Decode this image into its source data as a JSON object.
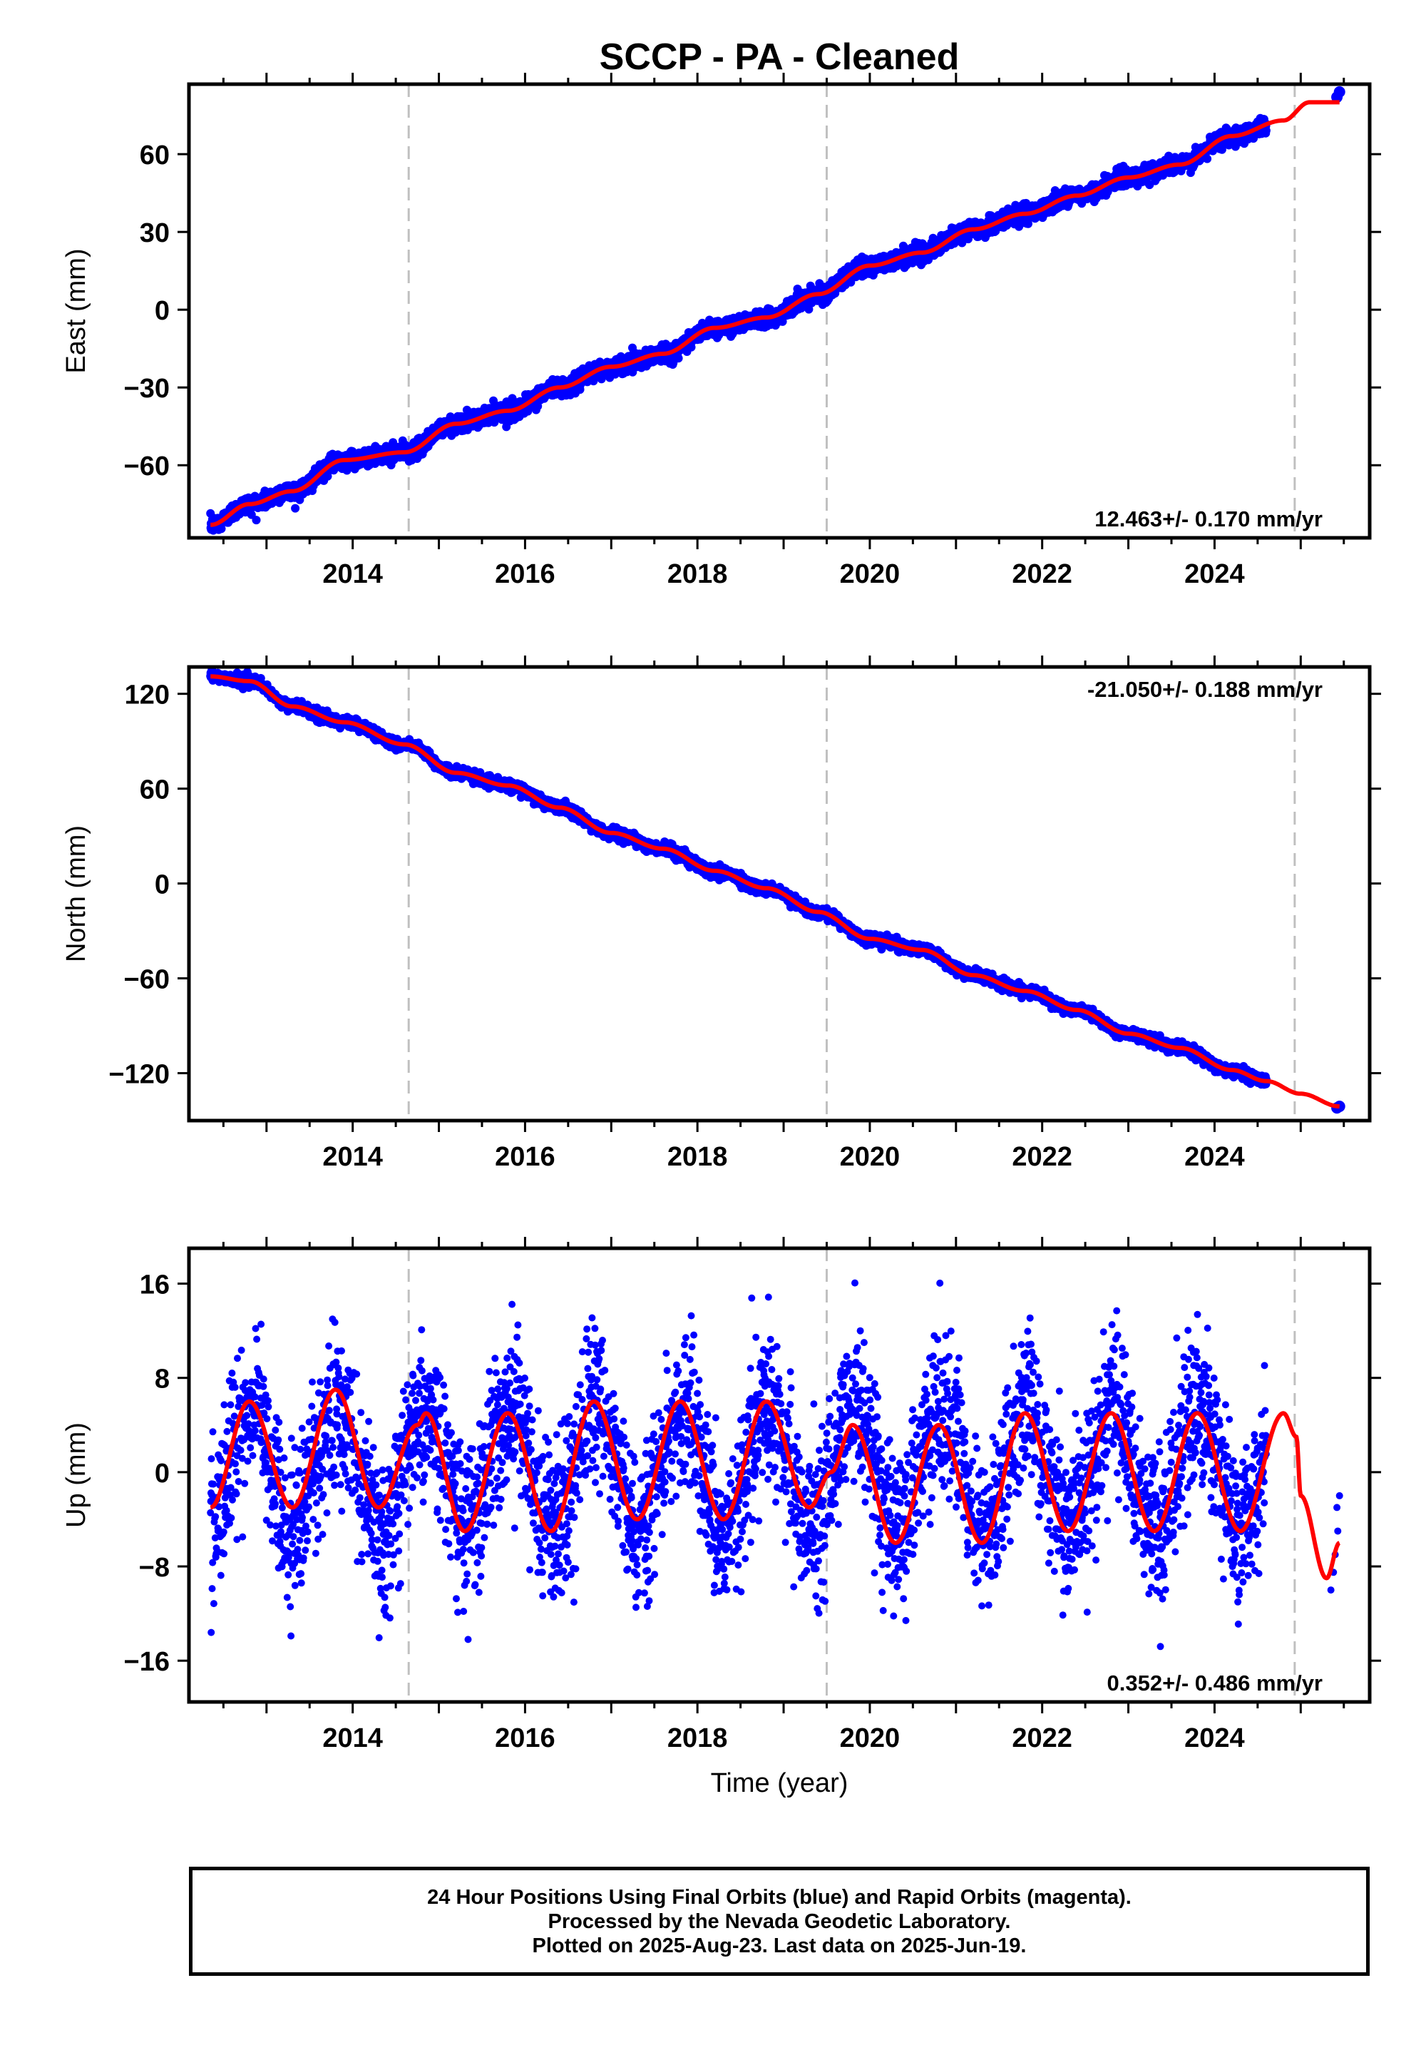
{
  "figure": {
    "title": "SCCP  - PA - Cleaned",
    "xlabel": "Time (year)",
    "footer_lines": [
      "24 Hour Positions Using Final Orbits (blue) and Rapid Orbits (magenta).",
      "Processed by the Nevada Geodetic Laboratory.",
      "Plotted on 2025-Aug-23. Last data on 2025-Jun-19."
    ]
  },
  "colors": {
    "data_points": "#0000ff",
    "model_fit": "#ff0000",
    "event_lines": "#c0c0c0",
    "frame": "#000000"
  },
  "chart_data": [
    {
      "type": "scatter",
      "component": "East",
      "ylabel": "East (mm)",
      "xlim": [
        2012.1,
        2025.8
      ],
      "ylim": [
        -88,
        87
      ],
      "yticks": [
        -60,
        -30,
        0,
        30,
        60
      ],
      "xticks": [
        2014,
        2016,
        2018,
        2020,
        2022,
        2024
      ],
      "event_lines_x": [
        2014.65,
        2019.5,
        2024.93
      ],
      "rate_label": "12.463+/- 0.170 mm/yr",
      "rate_label_position": "bottom-right",
      "data_range": [
        2012.35,
        2024.6
      ],
      "extra_points": [
        [
          2025.42,
          82
        ],
        [
          2025.45,
          84
        ]
      ],
      "fit_points": [
        [
          2012.35,
          -83
        ],
        [
          2012.8,
          -75
        ],
        [
          2013.3,
          -70
        ],
        [
          2013.9,
          -58
        ],
        [
          2014.6,
          -55
        ],
        [
          2015.2,
          -44
        ],
        [
          2015.8,
          -39
        ],
        [
          2016.4,
          -30
        ],
        [
          2017.0,
          -22
        ],
        [
          2017.6,
          -17
        ],
        [
          2018.2,
          -7
        ],
        [
          2018.8,
          -3
        ],
        [
          2019.4,
          6
        ],
        [
          2020.0,
          17
        ],
        [
          2020.6,
          22
        ],
        [
          2021.2,
          31
        ],
        [
          2021.8,
          37
        ],
        [
          2022.4,
          44
        ],
        [
          2023.0,
          51
        ],
        [
          2023.6,
          56
        ],
        [
          2024.2,
          67
        ],
        [
          2024.8,
          73
        ],
        [
          2025.1,
          80
        ],
        [
          2025.45,
          80
        ]
      ]
    },
    {
      "type": "scatter",
      "component": "North",
      "ylabel": "North (mm)",
      "xlim": [
        2012.1,
        2025.8
      ],
      "ylim": [
        -150,
        137
      ],
      "yticks": [
        -120,
        -60,
        0,
        60,
        120
      ],
      "xticks": [
        2014,
        2016,
        2018,
        2020,
        2022,
        2024
      ],
      "event_lines_x": [
        2014.65,
        2019.5,
        2024.93
      ],
      "rate_label": "-21.050+/- 0.188 mm/yr",
      "rate_label_position": "top-right",
      "data_range": [
        2012.35,
        2024.6
      ],
      "extra_points": [
        [
          2025.42,
          -142
        ],
        [
          2025.45,
          -141
        ]
      ],
      "fit_points": [
        [
          2012.35,
          131
        ],
        [
          2012.8,
          128
        ],
        [
          2013.3,
          112
        ],
        [
          2013.9,
          102
        ],
        [
          2014.6,
          88
        ],
        [
          2015.2,
          70
        ],
        [
          2015.8,
          62
        ],
        [
          2016.4,
          48
        ],
        [
          2017.0,
          32
        ],
        [
          2017.6,
          22
        ],
        [
          2018.2,
          8
        ],
        [
          2018.8,
          -3
        ],
        [
          2019.4,
          -18
        ],
        [
          2020.0,
          -35
        ],
        [
          2020.6,
          -42
        ],
        [
          2021.2,
          -58
        ],
        [
          2021.8,
          -68
        ],
        [
          2022.4,
          -80
        ],
        [
          2023.0,
          -95
        ],
        [
          2023.6,
          -104
        ],
        [
          2024.2,
          -118
        ],
        [
          2024.6,
          -125
        ],
        [
          2025.0,
          -133
        ],
        [
          2025.45,
          -141
        ]
      ]
    },
    {
      "type": "scatter",
      "component": "Up",
      "ylabel": "Up (mm)",
      "xlim": [
        2012.1,
        2025.8
      ],
      "ylim": [
        -19.5,
        19.0
      ],
      "yticks": [
        -16,
        -8,
        0,
        8,
        16
      ],
      "xticks": [
        2014,
        2016,
        2018,
        2020,
        2022,
        2024
      ],
      "event_lines_x": [
        2014.65,
        2019.5,
        2024.93
      ],
      "rate_label": "0.352+/- 0.486 mm/yr",
      "rate_label_position": "bottom-right",
      "data_range": [
        2012.35,
        2024.6
      ],
      "seasonal": {
        "mean": 0.4,
        "amplitude": 5.2,
        "peak_phase_year_fraction": 0.82,
        "noise_sd_mm": 3.3
      },
      "extra_points": [
        [
          2025.35,
          -10
        ],
        [
          2025.4,
          -7
        ],
        [
          2025.42,
          -3
        ],
        [
          2025.45,
          -2
        ],
        [
          2025.43,
          -5
        ],
        [
          2025.38,
          -8.5
        ]
      ],
      "fit_points": [
        [
          2012.35,
          -3
        ],
        [
          2012.8,
          6
        ],
        [
          2013.3,
          -3
        ],
        [
          2013.8,
          7
        ],
        [
          2014.3,
          -3
        ],
        [
          2014.75,
          4
        ],
        [
          2014.85,
          5
        ],
        [
          2015.3,
          -5
        ],
        [
          2015.8,
          5
        ],
        [
          2016.3,
          -5
        ],
        [
          2016.8,
          6
        ],
        [
          2017.3,
          -4
        ],
        [
          2017.8,
          6
        ],
        [
          2018.3,
          -4
        ],
        [
          2018.8,
          6
        ],
        [
          2019.3,
          -3
        ],
        [
          2019.55,
          0
        ],
        [
          2019.8,
          4
        ],
        [
          2020.3,
          -6
        ],
        [
          2020.8,
          4
        ],
        [
          2021.3,
          -6
        ],
        [
          2021.8,
          5
        ],
        [
          2022.3,
          -5
        ],
        [
          2022.8,
          5
        ],
        [
          2023.3,
          -5
        ],
        [
          2023.8,
          5
        ],
        [
          2024.3,
          -5
        ],
        [
          2024.8,
          5
        ],
        [
          2024.95,
          3
        ],
        [
          2025.0,
          -2
        ],
        [
          2025.3,
          -9
        ],
        [
          2025.45,
          -6
        ]
      ]
    }
  ]
}
